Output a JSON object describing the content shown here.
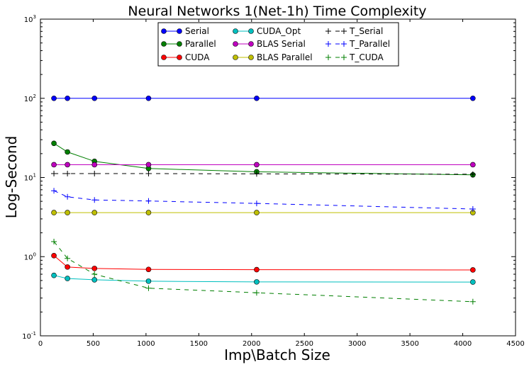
{
  "chart_data": {
    "type": "line",
    "title": "Neural Networks 1(Net-1h) Time Complexity",
    "xlabel": "Imp\\Batch Size",
    "ylabel": "Log-Second",
    "xlim": [
      0,
      4500
    ],
    "ylim": [
      0.1,
      1000
    ],
    "yscale": "log",
    "grid": false,
    "legend_position": "top-center",
    "x_ticks": [
      "0",
      "500",
      "1000",
      "1500",
      "2000",
      "2500",
      "3000",
      "3500",
      "4000",
      "4500"
    ],
    "y_ticks": [
      {
        "base": "10",
        "exp": "-1",
        "value": 0.1
      },
      {
        "base": "10",
        "exp": "0",
        "value": 1
      },
      {
        "base": "10",
        "exp": "1",
        "value": 10
      },
      {
        "base": "10",
        "exp": "2",
        "value": 100
      },
      {
        "base": "10",
        "exp": "3",
        "value": 1000
      }
    ],
    "x": [
      128,
      256,
      512,
      1024,
      2048,
      4096
    ],
    "series": [
      {
        "name": "Serial",
        "color": "#0000ff",
        "style": "solid",
        "marker": "circle",
        "values": [
          100,
          100,
          100,
          100,
          100,
          100
        ]
      },
      {
        "name": "Parallel",
        "color": "#007f00",
        "style": "solid",
        "marker": "circle",
        "values": [
          27,
          21,
          16,
          13,
          11.8,
          10.8
        ]
      },
      {
        "name": "CUDA",
        "color": "#ff0000",
        "style": "solid",
        "marker": "circle",
        "values": [
          1.03,
          0.74,
          0.71,
          0.69,
          0.685,
          0.68
        ]
      },
      {
        "name": "CUDA_Opt",
        "color": "#00bfbf",
        "style": "solid",
        "marker": "circle",
        "values": [
          0.58,
          0.53,
          0.51,
          0.49,
          0.48,
          0.478
        ]
      },
      {
        "name": "BLAS Serial",
        "color": "#bf00bf",
        "style": "solid",
        "marker": "circle",
        "values": [
          14.5,
          14.5,
          14.5,
          14.5,
          14.5,
          14.5
        ]
      },
      {
        "name": "BLAS Parallel",
        "color": "#bfbf00",
        "style": "solid",
        "marker": "circle",
        "values": [
          3.6,
          3.6,
          3.6,
          3.6,
          3.6,
          3.6
        ]
      },
      {
        "name": "T_Serial",
        "color": "#000000",
        "style": "dashed",
        "marker": "plus",
        "values": [
          11.2,
          11.2,
          11.2,
          11.2,
          11.1,
          11.0
        ]
      },
      {
        "name": "T_Parallel",
        "color": "#0000ff",
        "style": "dashed",
        "marker": "plus",
        "values": [
          6.8,
          5.7,
          5.2,
          5.05,
          4.7,
          4.0
        ]
      },
      {
        "name": "T_CUDA",
        "color": "#007f00",
        "style": "dashed",
        "marker": "plus",
        "values": [
          1.55,
          0.95,
          0.6,
          0.4,
          0.35,
          0.27
        ]
      }
    ]
  }
}
